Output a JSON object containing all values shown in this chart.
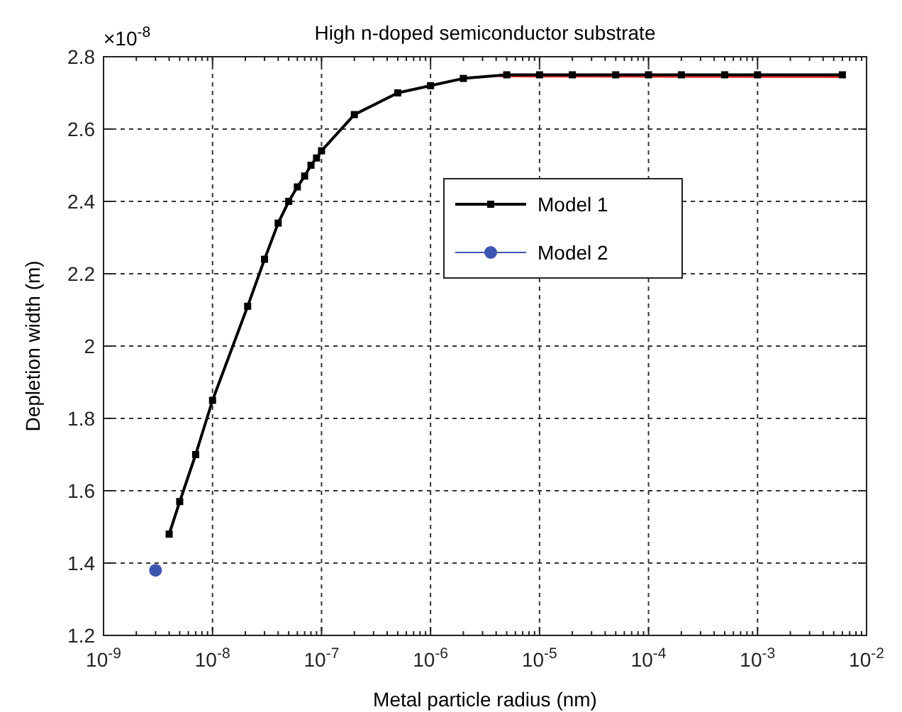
{
  "chart_data": {
    "type": "line",
    "title": "High n-doped semiconductor substrate",
    "xlabel": "Metal particle radius (nm)",
    "ylabel": "Depletion width (m)",
    "annotations": [
      "×10$^{-8}$"
    ],
    "log": "x",
    "grid": true,
    "legend": "top",
    "line_style": "solid",
    "xlim": [
      1e-09,
      0.01
    ],
    "xticks": [
      {
        "value": 1e-09,
        "label": "10$^{-9}$"
      },
      {
        "value": 1e-08,
        "label": "10$^{-8}$"
      },
      {
        "value": 1e-07,
        "label": "10$^{-7}$"
      },
      {
        "value": 1e-06,
        "label": "10$^{-6}$"
      },
      {
        "value": 1e-05,
        "label": "10$^{-5}$"
      },
      {
        "value": 0.0001,
        "label": "10$^{-4}$"
      },
      {
        "value": 0.001,
        "label": "10$^{-3}$"
      },
      {
        "value": 0.01,
        "label": "10$^{-2}$"
      }
    ],
    "ylim": [
      1.2,
      2.8
    ],
    "yticks": [
      1.2,
      1.4,
      1.6,
      1.8,
      2,
      2.2,
      2.4,
      2.6,
      2.8
    ],
    "series": [
      {
        "color": "#e8312a",
        "marker": "none",
        "x": [
          4.3e-06,
          0.006
        ],
        "values": [
          2.748,
          2.746
        ]
      },
      {
        "name": "Model 1",
        "color": "#000000",
        "marker": "square",
        "x": [
          4e-09,
          5e-09,
          7e-09,
          1e-08,
          2.1e-08,
          3e-08,
          4e-08,
          5e-08,
          6e-08,
          7e-08,
          8e-08,
          9e-08,
          1e-07,
          2e-07,
          5e-07,
          1e-06,
          2e-06,
          5e-06,
          1e-05,
          2e-05,
          5e-05,
          0.0001,
          0.0002,
          0.0005,
          0.001,
          0.006
        ],
        "values": [
          1.48,
          1.57,
          1.7,
          1.85,
          2.11,
          2.24,
          2.34,
          2.4,
          2.44,
          2.47,
          2.5,
          2.52,
          2.54,
          2.64,
          2.7,
          2.72,
          2.74,
          2.75,
          2.75,
          2.75,
          2.75,
          2.75,
          2.75,
          2.75,
          2.75,
          2.75
        ]
      },
      {
        "name": "Model 2",
        "color": "#3c56b0",
        "marker": "circle",
        "x": [
          3e-09
        ],
        "values": [
          1.38
        ]
      }
    ]
  }
}
